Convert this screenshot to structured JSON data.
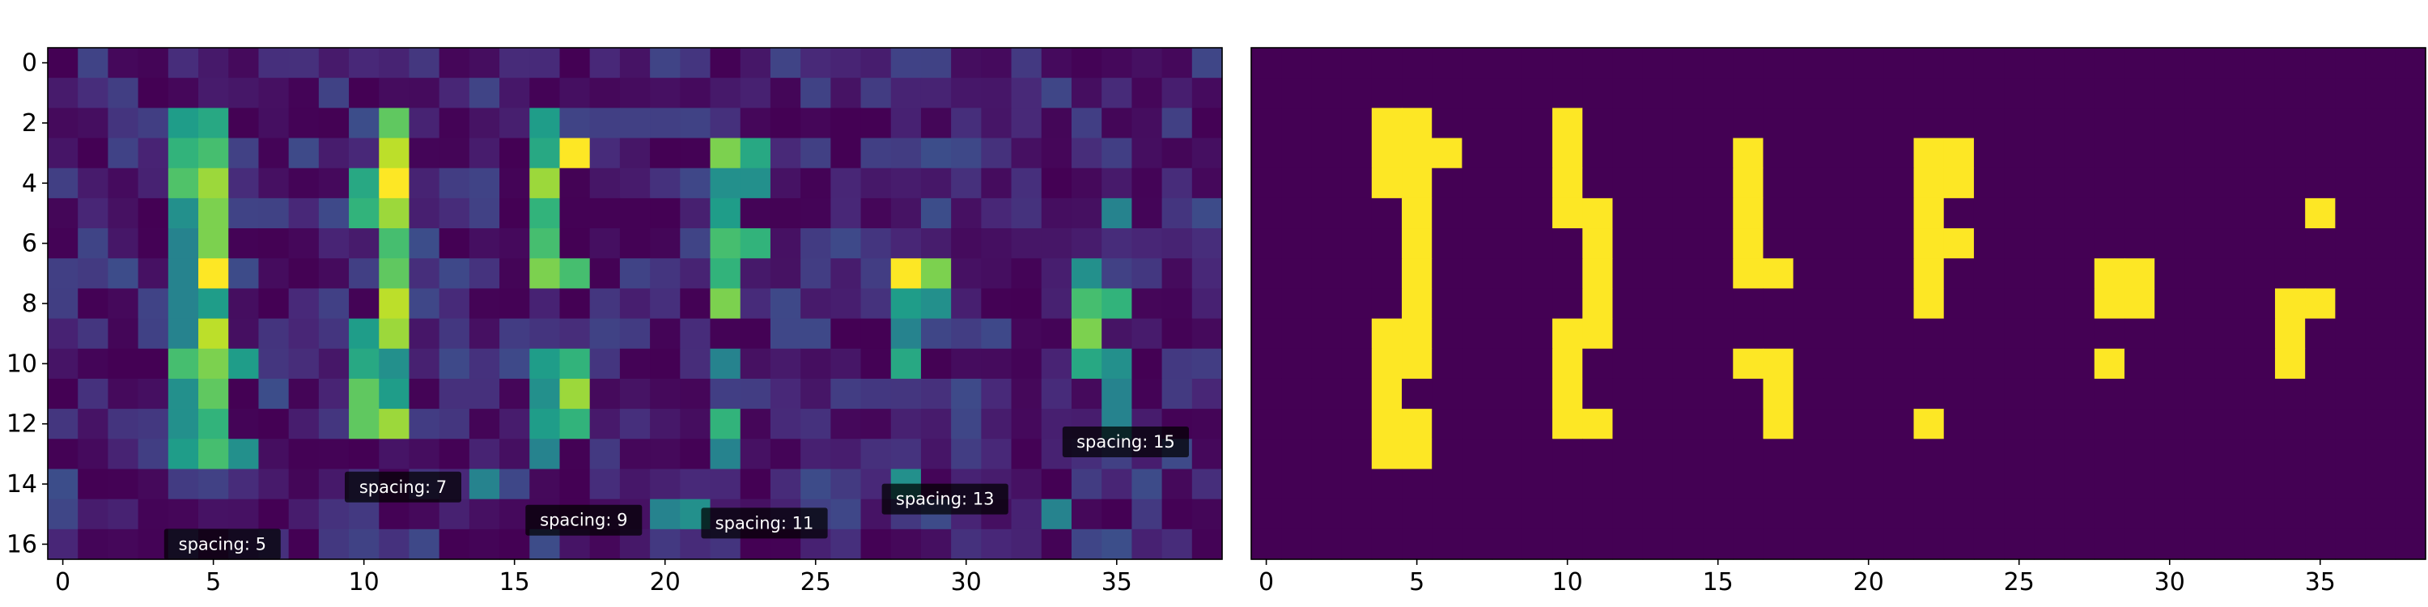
{
  "colormap": {
    "name": "viridis",
    "stops": [
      "#440154",
      "#482878",
      "#3e4989",
      "#31688e",
      "#26828e",
      "#1f9e89",
      "#35b779",
      "#6ece58",
      "#b5de2b",
      "#fde725"
    ]
  },
  "chart_data": [
    {
      "type": "heatmap",
      "title": "",
      "xlabel": "",
      "ylabel": "",
      "xlim": [
        -0.5,
        38.5
      ],
      "ylim": [
        16.5,
        -0.5
      ],
      "x_ticks": [
        0,
        5,
        10,
        15,
        20,
        25,
        30,
        35
      ],
      "y_ticks": [
        0,
        2,
        4,
        6,
        8,
        10,
        12,
        14,
        16
      ],
      "value_range": [
        0,
        1
      ],
      "grid": false,
      "noise_seed": 7,
      "noise_level": 0.24,
      "strong_cells": [
        [
          2,
          4,
          0.55
        ],
        [
          2,
          5,
          0.6
        ],
        [
          2,
          11,
          0.75
        ],
        [
          2,
          16,
          0.55
        ],
        [
          3,
          4,
          0.65
        ],
        [
          3,
          5,
          0.7
        ],
        [
          3,
          11,
          0.9
        ],
        [
          3,
          16,
          0.6
        ],
        [
          3,
          17,
          1.0
        ],
        [
          3,
          22,
          0.8
        ],
        [
          3,
          23,
          0.6
        ],
        [
          4,
          4,
          0.72
        ],
        [
          4,
          5,
          0.85
        ],
        [
          4,
          10,
          0.6
        ],
        [
          4,
          11,
          1.0
        ],
        [
          4,
          16,
          0.85
        ],
        [
          4,
          22,
          0.5
        ],
        [
          4,
          23,
          0.5
        ],
        [
          5,
          4,
          0.5
        ],
        [
          5,
          5,
          0.8
        ],
        [
          5,
          10,
          0.65
        ],
        [
          5,
          11,
          0.85
        ],
        [
          5,
          16,
          0.65
        ],
        [
          5,
          22,
          0.55
        ],
        [
          5,
          35,
          0.45
        ],
        [
          6,
          4,
          0.45
        ],
        [
          6,
          5,
          0.8
        ],
        [
          6,
          11,
          0.7
        ],
        [
          6,
          16,
          0.7
        ],
        [
          6,
          22,
          0.7
        ],
        [
          6,
          23,
          0.65
        ],
        [
          7,
          4,
          0.45
        ],
        [
          7,
          5,
          1.0
        ],
        [
          7,
          11,
          0.75
        ],
        [
          7,
          16,
          0.8
        ],
        [
          7,
          17,
          0.7
        ],
        [
          7,
          22,
          0.65
        ],
        [
          7,
          28,
          1.0
        ],
        [
          7,
          29,
          0.8
        ],
        [
          7,
          34,
          0.5
        ],
        [
          8,
          4,
          0.45
        ],
        [
          8,
          5,
          0.55
        ],
        [
          8,
          11,
          0.9
        ],
        [
          8,
          22,
          0.8
        ],
        [
          8,
          28,
          0.55
        ],
        [
          8,
          29,
          0.5
        ],
        [
          8,
          34,
          0.7
        ],
        [
          8,
          35,
          0.65
        ],
        [
          9,
          4,
          0.45
        ],
        [
          9,
          5,
          0.9
        ],
        [
          9,
          10,
          0.55
        ],
        [
          9,
          11,
          0.85
        ],
        [
          9,
          28,
          0.45
        ],
        [
          9,
          34,
          0.8
        ],
        [
          10,
          4,
          0.7
        ],
        [
          10,
          5,
          0.8
        ],
        [
          10,
          6,
          0.55
        ],
        [
          10,
          10,
          0.6
        ],
        [
          10,
          11,
          0.5
        ],
        [
          10,
          16,
          0.55
        ],
        [
          10,
          17,
          0.65
        ],
        [
          10,
          22,
          0.45
        ],
        [
          10,
          28,
          0.6
        ],
        [
          10,
          34,
          0.6
        ],
        [
          10,
          35,
          0.5
        ],
        [
          11,
          4,
          0.5
        ],
        [
          11,
          5,
          0.75
        ],
        [
          11,
          10,
          0.75
        ],
        [
          11,
          11,
          0.55
        ],
        [
          11,
          16,
          0.5
        ],
        [
          11,
          17,
          0.85
        ],
        [
          11,
          35,
          0.45
        ],
        [
          12,
          4,
          0.5
        ],
        [
          12,
          5,
          0.65
        ],
        [
          12,
          10,
          0.75
        ],
        [
          12,
          11,
          0.85
        ],
        [
          12,
          16,
          0.55
        ],
        [
          12,
          17,
          0.65
        ],
        [
          12,
          22,
          0.65
        ],
        [
          12,
          35,
          0.45
        ],
        [
          13,
          4,
          0.55
        ],
        [
          13,
          5,
          0.7
        ],
        [
          13,
          6,
          0.5
        ],
        [
          13,
          16,
          0.45
        ],
        [
          13,
          22,
          0.45
        ],
        [
          14,
          14,
          0.45
        ],
        [
          14,
          28,
          0.5
        ],
        [
          15,
          20,
          0.45
        ],
        [
          15,
          21,
          0.5
        ],
        [
          15,
          33,
          0.45
        ]
      ],
      "annotations": [
        {
          "text": "spacing: 5",
          "x": 5.3,
          "y": 16.0
        },
        {
          "text": "spacing: 7",
          "x": 11.3,
          "y": 14.1
        },
        {
          "text": "spacing: 9",
          "x": 17.3,
          "y": 15.2
        },
        {
          "text": "spacing: 11",
          "x": 23.3,
          "y": 15.3
        },
        {
          "text": "spacing: 13",
          "x": 29.3,
          "y": 14.5
        },
        {
          "text": "spacing: 15",
          "x": 35.3,
          "y": 12.6
        }
      ]
    },
    {
      "type": "heatmap",
      "title": "",
      "xlabel": "",
      "ylabel": "",
      "xlim": [
        -0.5,
        38.5
      ],
      "ylim": [
        16.5,
        -0.5
      ],
      "x_ticks": [
        0,
        5,
        10,
        15,
        20,
        25,
        30,
        35
      ],
      "y_ticks": [],
      "value_range": [
        0,
        1
      ],
      "binary": true,
      "grid": false,
      "on_cells": [
        [
          2,
          4
        ],
        [
          2,
          5
        ],
        [
          2,
          10
        ],
        [
          3,
          4
        ],
        [
          3,
          5
        ],
        [
          3,
          6
        ],
        [
          3,
          10
        ],
        [
          3,
          16
        ],
        [
          3,
          22
        ],
        [
          3,
          23
        ],
        [
          4,
          4
        ],
        [
          4,
          5
        ],
        [
          4,
          10
        ],
        [
          4,
          16
        ],
        [
          4,
          22
        ],
        [
          4,
          23
        ],
        [
          5,
          5
        ],
        [
          5,
          10
        ],
        [
          5,
          11
        ],
        [
          5,
          16
        ],
        [
          5,
          22
        ],
        [
          5,
          35
        ],
        [
          6,
          5
        ],
        [
          6,
          11
        ],
        [
          6,
          16
        ],
        [
          6,
          22
        ],
        [
          6,
          23
        ],
        [
          7,
          5
        ],
        [
          7,
          11
        ],
        [
          7,
          16
        ],
        [
          7,
          17
        ],
        [
          7,
          22
        ],
        [
          7,
          28
        ],
        [
          7,
          29
        ],
        [
          8,
          5
        ],
        [
          8,
          11
        ],
        [
          8,
          22
        ],
        [
          8,
          28
        ],
        [
          8,
          29
        ],
        [
          8,
          34
        ],
        [
          8,
          35
        ],
        [
          9,
          4
        ],
        [
          9,
          5
        ],
        [
          9,
          10
        ],
        [
          9,
          11
        ],
        [
          9,
          34
        ],
        [
          10,
          4
        ],
        [
          10,
          5
        ],
        [
          10,
          10
        ],
        [
          10,
          16
        ],
        [
          10,
          17
        ],
        [
          10,
          28
        ],
        [
          10,
          34
        ],
        [
          11,
          4
        ],
        [
          11,
          10
        ],
        [
          11,
          17
        ],
        [
          12,
          4
        ],
        [
          12,
          5
        ],
        [
          12,
          10
        ],
        [
          12,
          11
        ],
        [
          12,
          17
        ],
        [
          12,
          22
        ],
        [
          13,
          4
        ],
        [
          13,
          5
        ]
      ]
    }
  ]
}
